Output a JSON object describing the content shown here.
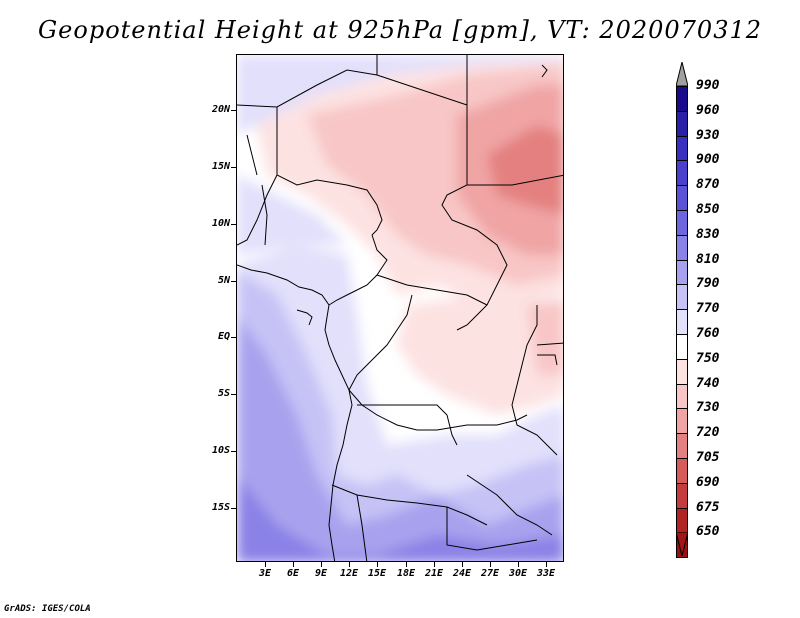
{
  "title": "Geopotential Height at 925hPa [gpm], VT: 2020070312",
  "map": {
    "lat_ticks": [
      "20N",
      "15N",
      "10N",
      "5N",
      "EQ",
      "5S",
      "10S",
      "15S"
    ],
    "lon_ticks": [
      "3E",
      "6E",
      "9E",
      "12E",
      "15E",
      "18E",
      "21E",
      "24E",
      "27E",
      "30E",
      "33E"
    ],
    "lat_range": [
      -20,
      25
    ],
    "lon_range": [
      0,
      35
    ]
  },
  "colorbar": {
    "labels": [
      "990",
      "960",
      "930",
      "900",
      "870",
      "850",
      "830",
      "810",
      "790",
      "770",
      "760",
      "750",
      "740",
      "730",
      "720",
      "705",
      "690",
      "675",
      "650"
    ],
    "colors": [
      "#1a0a8c",
      "#2a1fa6",
      "#3a30bf",
      "#4a40cc",
      "#5c52d6",
      "#6e66de",
      "#8a82e6",
      "#a8a2ee",
      "#c6c2f6",
      "#e2e0fb",
      "#ffffff",
      "#fde2e2",
      "#f8c6c6",
      "#f0a4a4",
      "#e48080",
      "#d65c5c",
      "#c43c3c",
      "#b02424",
      "#9a1010"
    ],
    "top_arrow_color": "#a0a0a0",
    "bottom_arrow_color": "#a01515"
  },
  "footer": "GrADS: IGES/COLA"
}
